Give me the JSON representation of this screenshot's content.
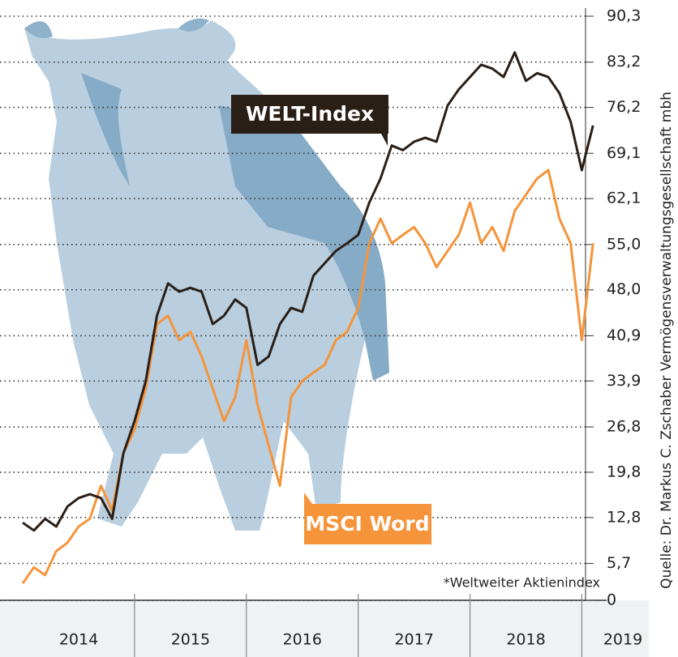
{
  "chart_data": {
    "type": "line",
    "note": "*Weltweiter Aktienindex",
    "source": "Quelle: Dr. Markus C. Zschaber Vermögensverwaltungsgesellschaft mbh",
    "x": [
      2014.0,
      2014.1,
      2014.2,
      2014.3,
      2014.4,
      2014.5,
      2014.6,
      2014.7,
      2014.8,
      2014.9,
      2015.0,
      2015.1,
      2015.2,
      2015.3,
      2015.4,
      2015.5,
      2015.6,
      2015.7,
      2015.8,
      2015.9,
      2016.0,
      2016.1,
      2016.2,
      2016.3,
      2016.4,
      2016.5,
      2016.6,
      2016.7,
      2016.8,
      2016.9,
      2017.0,
      2017.1,
      2017.2,
      2017.3,
      2017.4,
      2017.5,
      2017.6,
      2017.7,
      2017.8,
      2017.9,
      2018.0,
      2018.1,
      2018.2,
      2018.3,
      2018.4,
      2018.5,
      2018.6,
      2018.7,
      2018.8,
      2018.9,
      2019.0,
      2019.1
    ],
    "series": [
      {
        "name": "WELT-Index",
        "color": "#2a1f17",
        "values": [
          12.0,
          10.8,
          12.6,
          11.4,
          14.5,
          15.8,
          16.4,
          15.8,
          12.6,
          22.7,
          27.7,
          33.9,
          44.0,
          49.0,
          47.7,
          48.3,
          47.7,
          42.7,
          44.0,
          46.5,
          45.2,
          36.4,
          37.7,
          42.7,
          45.2,
          44.6,
          50.2,
          52.1,
          54.0,
          55.2,
          56.5,
          61.5,
          65.2,
          70.3,
          69.6,
          70.9,
          71.5,
          70.9,
          76.5,
          79.0,
          80.9,
          82.8,
          82.2,
          80.9,
          84.7,
          80.3,
          81.5,
          80.9,
          78.4,
          74.0,
          66.5,
          73.4
        ]
      },
      {
        "name": "MSCI Word",
        "color": "#f5943a",
        "values": [
          2.6,
          5.1,
          3.9,
          7.6,
          8.9,
          11.4,
          12.6,
          17.7,
          13.9,
          22.7,
          26.4,
          32.7,
          42.7,
          44.0,
          40.2,
          41.5,
          37.7,
          32.7,
          27.7,
          31.4,
          40.2,
          30.2,
          23.9,
          17.7,
          31.4,
          33.9,
          35.2,
          36.4,
          40.2,
          41.5,
          45.2,
          55.2,
          59.0,
          55.2,
          56.5,
          57.7,
          55.2,
          51.5,
          54.0,
          56.5,
          61.5,
          55.2,
          57.7,
          54.0,
          60.2,
          62.7,
          65.2,
          66.5,
          59.0,
          55.2,
          40.2,
          55.2
        ]
      }
    ],
    "xlim": [
      2014,
      2019.2
    ],
    "xticks": [
      2014,
      2015,
      2016,
      2017,
      2018,
      2019
    ],
    "ylim": [
      0,
      90.3
    ],
    "yticks": [
      0,
      {
        "value": 5.7,
        "label": "5,7"
      },
      {
        "value": 12.8,
        "label": "12,8"
      },
      {
        "value": 19.8,
        "label": "19,8"
      },
      {
        "value": 26.8,
        "label": "26,8"
      },
      {
        "value": 33.9,
        "label": "33,9"
      },
      {
        "value": 40.9,
        "label": "40,9"
      },
      {
        "value": 48.0,
        "label": "48,0"
      },
      {
        "value": 55.0,
        "label": "55,0"
      },
      {
        "value": 62.1,
        "label": "62,1"
      },
      {
        "value": 69.1,
        "label": "69,1"
      },
      {
        "value": 76.2,
        "label": "76,2"
      },
      {
        "value": 83.2,
        "label": "83,2"
      },
      {
        "value": 90.3,
        "label": "90,3"
      }
    ],
    "grid": true
  }
}
